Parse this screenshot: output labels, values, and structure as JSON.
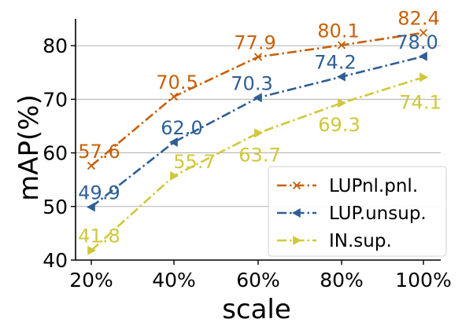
{
  "chart_data": {
    "type": "line",
    "categories": [
      "20%",
      "40%",
      "60%",
      "80%",
      "100%"
    ],
    "xlabel": "scale",
    "ylabel": "mAP(%)",
    "ylim": [
      40,
      85
    ],
    "yticks": [
      "40",
      "50",
      "60",
      "70",
      "80"
    ],
    "grid": "horizontal",
    "legend_position": "lower-right",
    "series": [
      {
        "name": "LUPnl.pnl.",
        "values": [
          57.6,
          70.5,
          77.9,
          80.1,
          82.4
        ],
        "labels": [
          "57.6",
          "70.5",
          "77.9",
          "80.1",
          "82.4"
        ],
        "color": "#c8600a",
        "marker": "x-icon",
        "linestyle": "dash-dot"
      },
      {
        "name": "LUP.unsup.",
        "values": [
          49.9,
          62.0,
          70.3,
          74.2,
          78.0
        ],
        "labels": [
          "49.9",
          "62.0",
          "70.3",
          "74.2",
          "78.0"
        ],
        "color": "#2f5f94",
        "marker": "triangle-left-icon",
        "linestyle": "dash-dot"
      },
      {
        "name": "IN.sup.",
        "values": [
          41.8,
          55.7,
          63.7,
          69.3,
          74.1
        ],
        "labels": [
          "41.8",
          "55.7",
          "63.7",
          "69.3",
          "74.1"
        ],
        "color": "#cfc83a",
        "marker": "triangle-right-icon",
        "linestyle": "dash-dot"
      }
    ]
  }
}
